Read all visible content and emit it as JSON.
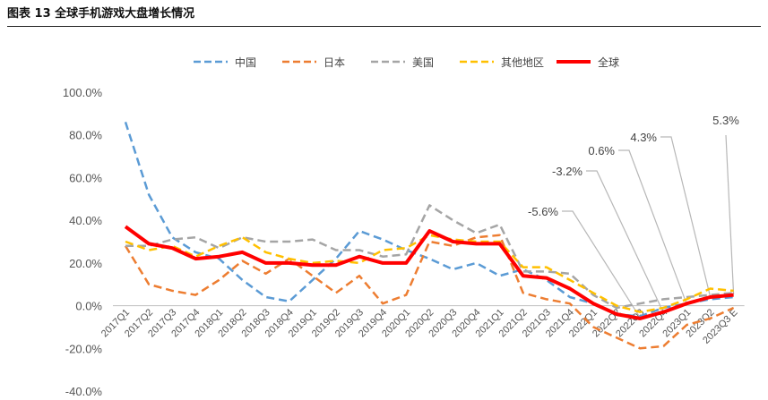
{
  "figure": {
    "title": "图表 13 全球手机游戏大盘增长情况"
  },
  "chart_data": {
    "type": "line",
    "x": [
      "2017Q1",
      "2017Q2",
      "2017Q3",
      "2017Q4",
      "2018Q1",
      "2018Q2",
      "2018Q3",
      "2018Q4",
      "2019Q1",
      "2019Q2",
      "2019Q3",
      "2019Q4",
      "2020Q1",
      "2020Q2",
      "2020Q3",
      "2020Q4",
      "2021Q1",
      "2021Q2",
      "2021Q3",
      "2021Q4",
      "2022Q1",
      "2022Q2",
      "2022Q3",
      "2022Q4",
      "2023Q1",
      "2023Q2",
      "2023Q3 E"
    ],
    "ylim": [
      -40,
      100
    ],
    "yticks": [
      -40,
      -20,
      0,
      20,
      40,
      60,
      80,
      100
    ],
    "ytick_labels": [
      "-40.0%",
      "-20.0%",
      "0.0%",
      "20.0%",
      "40.0%",
      "60.0%",
      "80.0%",
      "100.0%"
    ],
    "legend_position": "top",
    "grid": false,
    "series": [
      {
        "name": "中国",
        "color": "#5B9BD5",
        "style": "dash",
        "width": 2.5,
        "values": [
          86,
          52,
          32,
          25,
          22,
          12,
          4,
          2,
          12,
          22,
          35,
          31,
          26,
          22,
          17,
          20,
          14,
          17,
          12,
          4,
          1,
          -4,
          -5,
          -1,
          1,
          3,
          4
        ]
      },
      {
        "name": "日本",
        "color": "#ED7D31",
        "style": "dash",
        "width": 2.5,
        "values": [
          28,
          10,
          7,
          5,
          12,
          21,
          15,
          22,
          14,
          6,
          14,
          1,
          5,
          30,
          28,
          32,
          33,
          6,
          3,
          1,
          -10,
          -15,
          -20,
          -19,
          -9,
          -6,
          -1
        ]
      },
      {
        "name": "美国",
        "color": "#A5A5A5",
        "style": "dash",
        "width": 2.5,
        "values": [
          28,
          28,
          31,
          32,
          27,
          32,
          30,
          30,
          31,
          26,
          26,
          23,
          24,
          47,
          40,
          34,
          38,
          16,
          16,
          15,
          5,
          -1,
          1,
          3,
          4,
          5,
          6
        ]
      },
      {
        "name": "其他地区",
        "color": "#FFC000",
        "style": "dash",
        "width": 2.5,
        "values": [
          30,
          26,
          28,
          23,
          28,
          32,
          25,
          22,
          20,
          21,
          20,
          26,
          27,
          33,
          31,
          30,
          30,
          18,
          18,
          12,
          6,
          0,
          -3,
          -1,
          3,
          8,
          7
        ]
      },
      {
        "name": "全球",
        "color": "#FF0000",
        "style": "solid",
        "width": 4,
        "values": [
          37,
          29,
          27,
          22,
          23,
          25,
          20,
          20,
          19,
          19,
          23,
          20,
          20,
          35,
          30,
          29,
          29,
          14,
          13,
          8,
          1,
          -4,
          -6,
          -3,
          1,
          4,
          5
        ]
      }
    ],
    "annotations": [
      {
        "label": "-5.6%",
        "x": "2022Q3",
        "y": -5.6
      },
      {
        "label": "-3.2%",
        "x": "2022Q4",
        "y": -3.2
      },
      {
        "label": "0.6%",
        "x": "2023Q1",
        "y": 0.6
      },
      {
        "label": "4.3%",
        "x": "2023Q2",
        "y": 4.3
      },
      {
        "label": "5.3%",
        "x": "2023Q3 E",
        "y": 5.3
      }
    ]
  }
}
